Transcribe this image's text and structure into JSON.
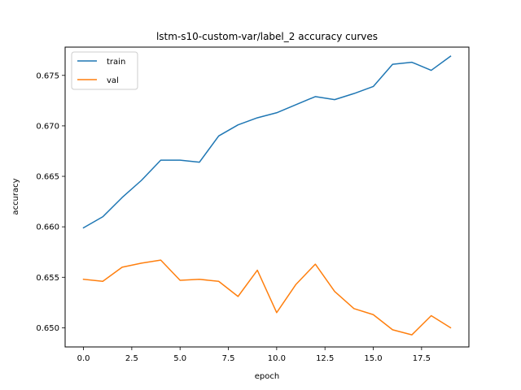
{
  "chart_data": {
    "type": "line",
    "title": "lstm-s10-custom-var/label_2 accuracy curves",
    "xlabel": "epoch",
    "ylabel": "accuracy",
    "xlim": [
      -0.95,
      19.95
    ],
    "ylim": [
      0.6481,
      0.6778
    ],
    "xticks": [
      0,
      2.5,
      5,
      7.5,
      10,
      12.5,
      15,
      17.5
    ],
    "xtick_labels": [
      "0.0",
      "2.5",
      "5.0",
      "7.5",
      "10.0",
      "12.5",
      "15.0",
      "17.5"
    ],
    "yticks": [
      0.65,
      0.655,
      0.66,
      0.665,
      0.67,
      0.675
    ],
    "ytick_labels": [
      "0.650",
      "0.655",
      "0.660",
      "0.665",
      "0.670",
      "0.675"
    ],
    "grid": false,
    "legend_position": "upper-left",
    "x": [
      0,
      1,
      2,
      3,
      4,
      5,
      6,
      7,
      8,
      9,
      10,
      11,
      12,
      13,
      14,
      15,
      16,
      17,
      18,
      19
    ],
    "series": [
      {
        "name": "train",
        "color": "#1f77b4",
        "values": [
          0.6599,
          0.661,
          0.6629,
          0.6646,
          0.6666,
          0.6666,
          0.6664,
          0.669,
          0.6701,
          0.6708,
          0.6713,
          0.6721,
          0.6729,
          0.6726,
          0.6732,
          0.6739,
          0.6761,
          0.6763,
          0.6755,
          0.6769
        ]
      },
      {
        "name": "val",
        "color": "#ff7f0e",
        "values": [
          0.6548,
          0.6546,
          0.656,
          0.6564,
          0.6567,
          0.6547,
          0.6548,
          0.6546,
          0.6531,
          0.6557,
          0.6515,
          0.6543,
          0.6563,
          0.6536,
          0.6519,
          0.6513,
          0.6498,
          0.6493,
          0.6512,
          0.65
        ]
      }
    ]
  }
}
